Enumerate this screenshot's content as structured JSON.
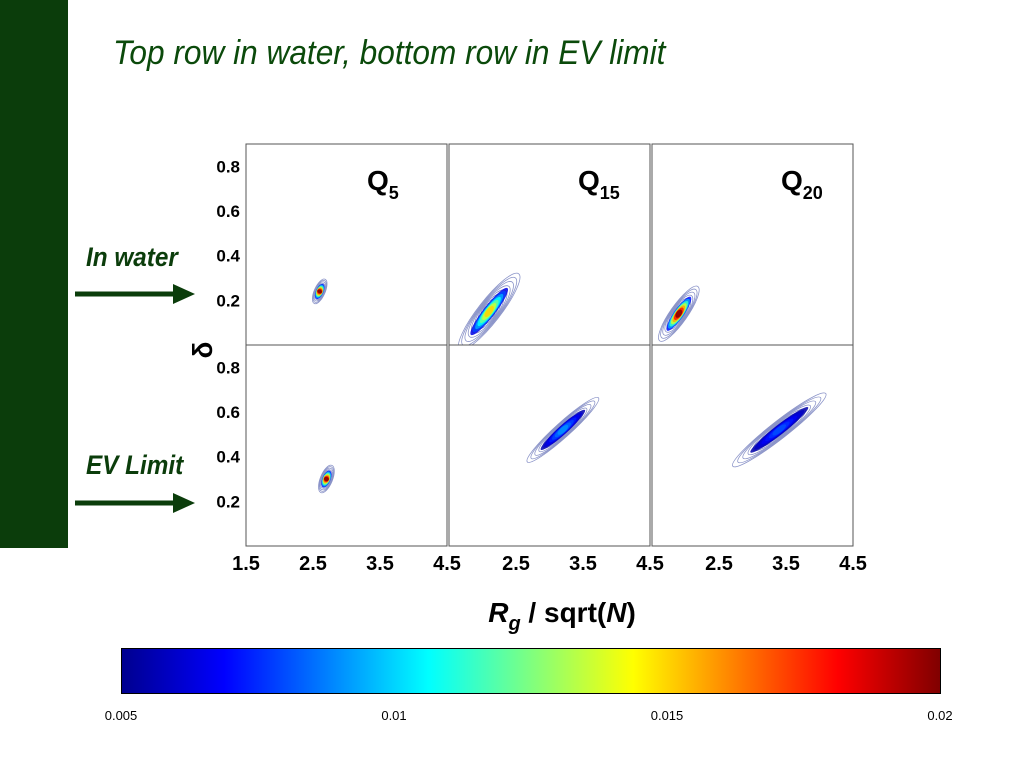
{
  "slide": {
    "title": "Top row in water, bottom row in EV limit",
    "row_labels": [
      "In water",
      "EV Limit"
    ]
  },
  "colors": {
    "sidebar": "#0b3d0b",
    "title_text": "#0b4a0b",
    "contour_line": "#8a93c8",
    "colormap": [
      "#00008f",
      "#0000ff",
      "#007fff",
      "#00ffff",
      "#7fff7f",
      "#ffff00",
      "#ff7f00",
      "#ff0000",
      "#800000"
    ]
  },
  "chart_data": {
    "type": "heatmap",
    "description": "Contour density maps of delta vs Rg/sqrt(N) for three charge states, top row in water, bottom row in EV limit",
    "xlabel": "Rg / sqrt(N)",
    "ylabel": "δ",
    "panels": [
      {
        "id": "q5-water",
        "row": "In water",
        "label_main": "Q",
        "label_sub": "5",
        "xlim": [
          1.5,
          4.5
        ],
        "ylim": [
          0,
          0.9
        ],
        "center": [
          2.6,
          0.24
        ],
        "spread_x": 0.36,
        "spread_y": 0.22,
        "slope_deg": 66,
        "peak": 0.02
      },
      {
        "id": "q15-water",
        "row": "In water",
        "label_main": "Q",
        "label_sub": "15",
        "xlim": [
          1.5,
          4.5
        ],
        "ylim": [
          0,
          0.9
        ],
        "center": [
          2.1,
          0.15
        ],
        "spread_x": 1.3,
        "spread_y": 0.45,
        "slope_deg": 52,
        "peak": 0.015
      },
      {
        "id": "q20-water",
        "row": "In water",
        "label_main": "Q",
        "label_sub": "20",
        "xlim": [
          1.5,
          4.5
        ],
        "ylim": [
          0,
          0.9
        ],
        "center": [
          1.9,
          0.14
        ],
        "spread_x": 0.9,
        "spread_y": 0.35,
        "slope_deg": 55,
        "peak": 0.02
      },
      {
        "id": "q5-ev",
        "row": "EV Limit",
        "label_main": "",
        "label_sub": "",
        "xlim": [
          1.5,
          4.5
        ],
        "ylim": [
          0,
          0.9
        ],
        "center": [
          2.7,
          0.3
        ],
        "spread_x": 0.4,
        "spread_y": 0.25,
        "slope_deg": 68,
        "peak": 0.02
      },
      {
        "id": "q15-ev",
        "row": "EV Limit",
        "label_main": "",
        "label_sub": "",
        "xlim": [
          1.5,
          4.5
        ],
        "ylim": [
          0,
          0.9
        ],
        "center": [
          3.2,
          0.52
        ],
        "spread_x": 1.3,
        "spread_y": 0.3,
        "slope_deg": 42,
        "peak": 0.009
      },
      {
        "id": "q20-ev",
        "row": "EV Limit",
        "label_main": "",
        "label_sub": "",
        "xlim": [
          1.5,
          4.5
        ],
        "ylim": [
          0,
          0.9
        ],
        "center": [
          3.4,
          0.52
        ],
        "spread_x": 1.6,
        "spread_y": 0.35,
        "slope_deg": 38,
        "peak": 0.008
      }
    ],
    "yticks": [
      "0.2",
      "0.4",
      "0.6",
      "0.8"
    ],
    "ytick_values": [
      0.2,
      0.4,
      0.6,
      0.8
    ],
    "xticks_first": [
      "1.5",
      "2.5",
      "3.5",
      "4.5"
    ],
    "xticks_first_values": [
      1.5,
      2.5,
      3.5,
      4.5
    ],
    "xticks_other": [
      "2.5",
      "3.5",
      "4.5"
    ],
    "xticks_other_values": [
      2.5,
      3.5,
      4.5
    ],
    "colorbar": {
      "range": [
        0.005,
        0.02
      ],
      "ticks": [
        "0.005",
        "0.01",
        "0.015",
        "0.02"
      ],
      "tick_values": [
        0.005,
        0.01,
        0.015,
        0.02
      ]
    }
  }
}
